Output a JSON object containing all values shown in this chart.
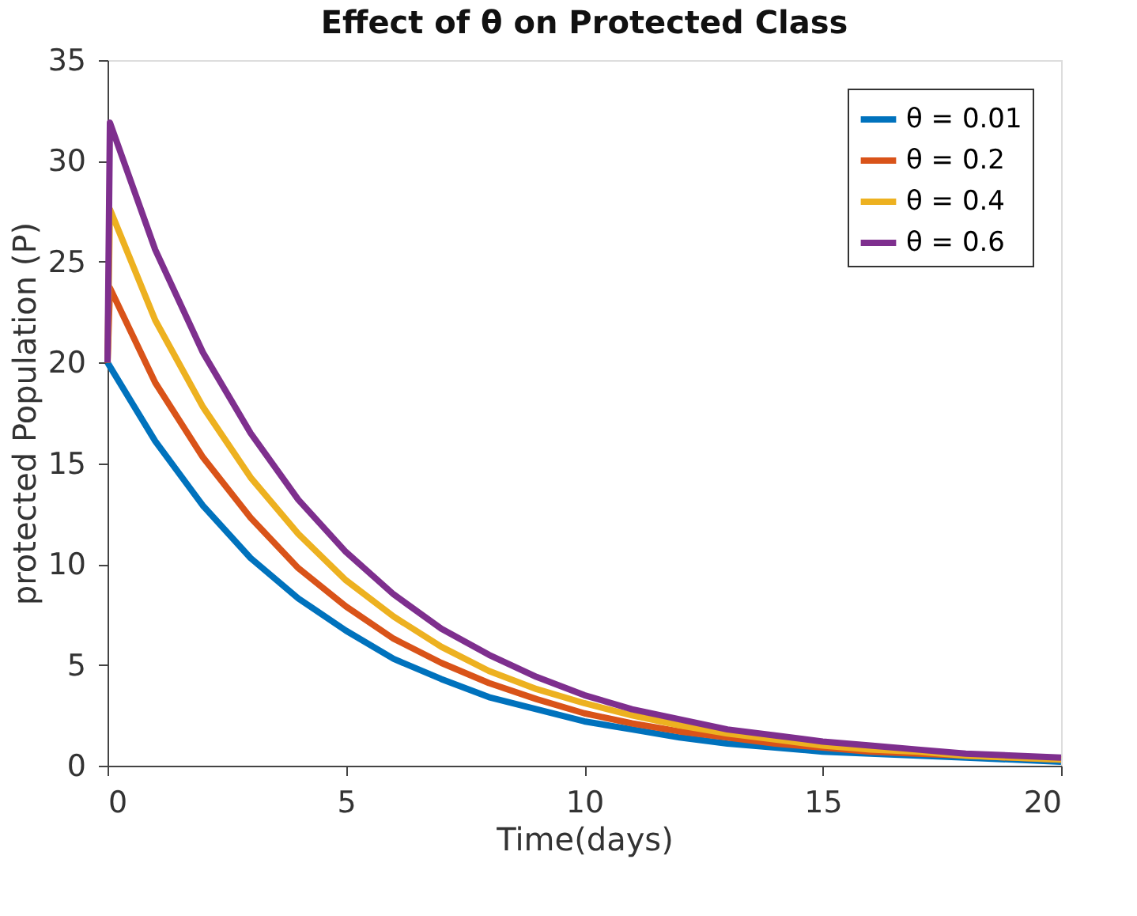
{
  "chart_data": {
    "type": "line",
    "title": "Effect of θ on Protected  Class",
    "xlabel": "Time(days)",
    "ylabel": "protected  Population  (P)",
    "x": [
      0,
      0.05,
      1,
      2,
      3,
      4,
      5,
      6,
      7,
      8,
      9,
      10,
      11,
      12,
      13,
      14,
      15,
      16,
      17,
      18,
      19,
      20
    ],
    "series": [
      {
        "name": "θ = 0.01",
        "color": "#0072bd",
        "values": [
          20,
          19.8,
          16.1,
          12.9,
          10.3,
          8.3,
          6.7,
          5.3,
          4.3,
          3.4,
          2.8,
          2.2,
          1.8,
          1.4,
          1.1,
          0.9,
          0.7,
          0.6,
          0.5,
          0.4,
          0.3,
          0.2
        ]
      },
      {
        "name": "θ = 0.2",
        "color": "#d95319",
        "values": [
          20,
          23.7,
          19.0,
          15.3,
          12.3,
          9.8,
          7.9,
          6.3,
          5.1,
          4.1,
          3.3,
          2.6,
          2.1,
          1.7,
          1.4,
          1.1,
          0.9,
          0.7,
          0.6,
          0.5,
          0.4,
          0.3
        ]
      },
      {
        "name": "θ = 0.4",
        "color": "#edb120",
        "values": [
          20,
          27.6,
          22.1,
          17.8,
          14.3,
          11.5,
          9.2,
          7.4,
          5.9,
          4.7,
          3.8,
          3.1,
          2.5,
          2.0,
          1.6,
          1.3,
          1.0,
          0.8,
          0.7,
          0.5,
          0.4,
          0.3
        ]
      },
      {
        "name": "θ = 0.6",
        "color": "#7e2f8e",
        "values": [
          20,
          31.9,
          25.6,
          20.5,
          16.5,
          13.2,
          10.6,
          8.5,
          6.8,
          5.5,
          4.4,
          3.5,
          2.8,
          2.3,
          1.8,
          1.5,
          1.2,
          1.0,
          0.8,
          0.6,
          0.5,
          0.4
        ]
      }
    ],
    "xlim": [
      0,
      20
    ],
    "xticks": [
      0,
      5,
      10,
      15,
      20
    ],
    "ylim": [
      0,
      35
    ],
    "yticks": [
      0,
      5,
      10,
      15,
      20,
      25,
      30,
      35
    ],
    "grid": false,
    "legend": "top right",
    "marker": "none",
    "line_style": "solid"
  }
}
